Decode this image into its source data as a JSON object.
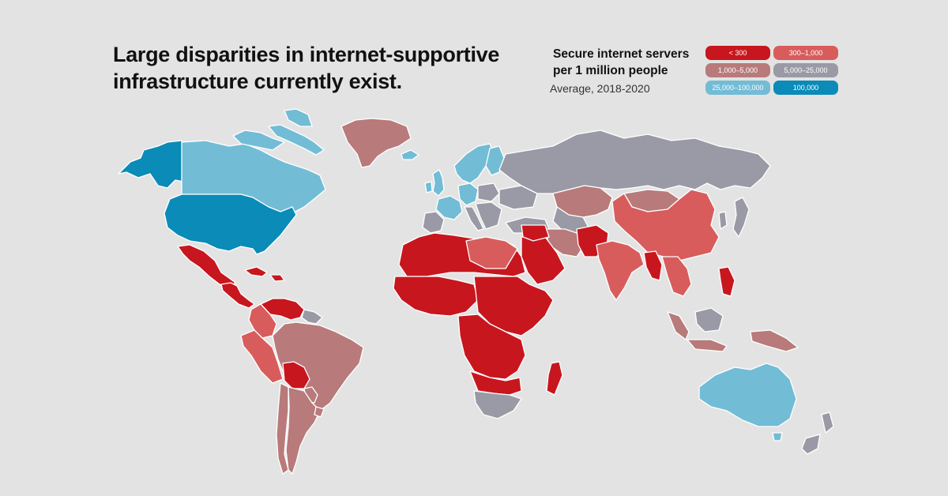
{
  "title": {
    "line1": "Large disparities in internet-supportive",
    "line2": "infrastructure currently exist."
  },
  "legend": {
    "title_line1": "Secure internet servers",
    "title_line2": "per 1 million people",
    "subtitle": "Average, 2018-2020",
    "categories": [
      {
        "label": "< 300",
        "color": "#c8161e"
      },
      {
        "label": "300–1,000",
        "color": "#d85c5c"
      },
      {
        "label": "1,000–5,000",
        "color": "#b87a7a"
      },
      {
        "label": "5,000–25,000",
        "color": "#9a9aa6"
      },
      {
        "label": "25,000–100,000",
        "color": "#72bcd6"
      },
      {
        "label": "100,000",
        "color": "#0a8bb8"
      }
    ]
  },
  "colors": {
    "background": "#e3e3e3",
    "border": "#ffffff"
  }
}
